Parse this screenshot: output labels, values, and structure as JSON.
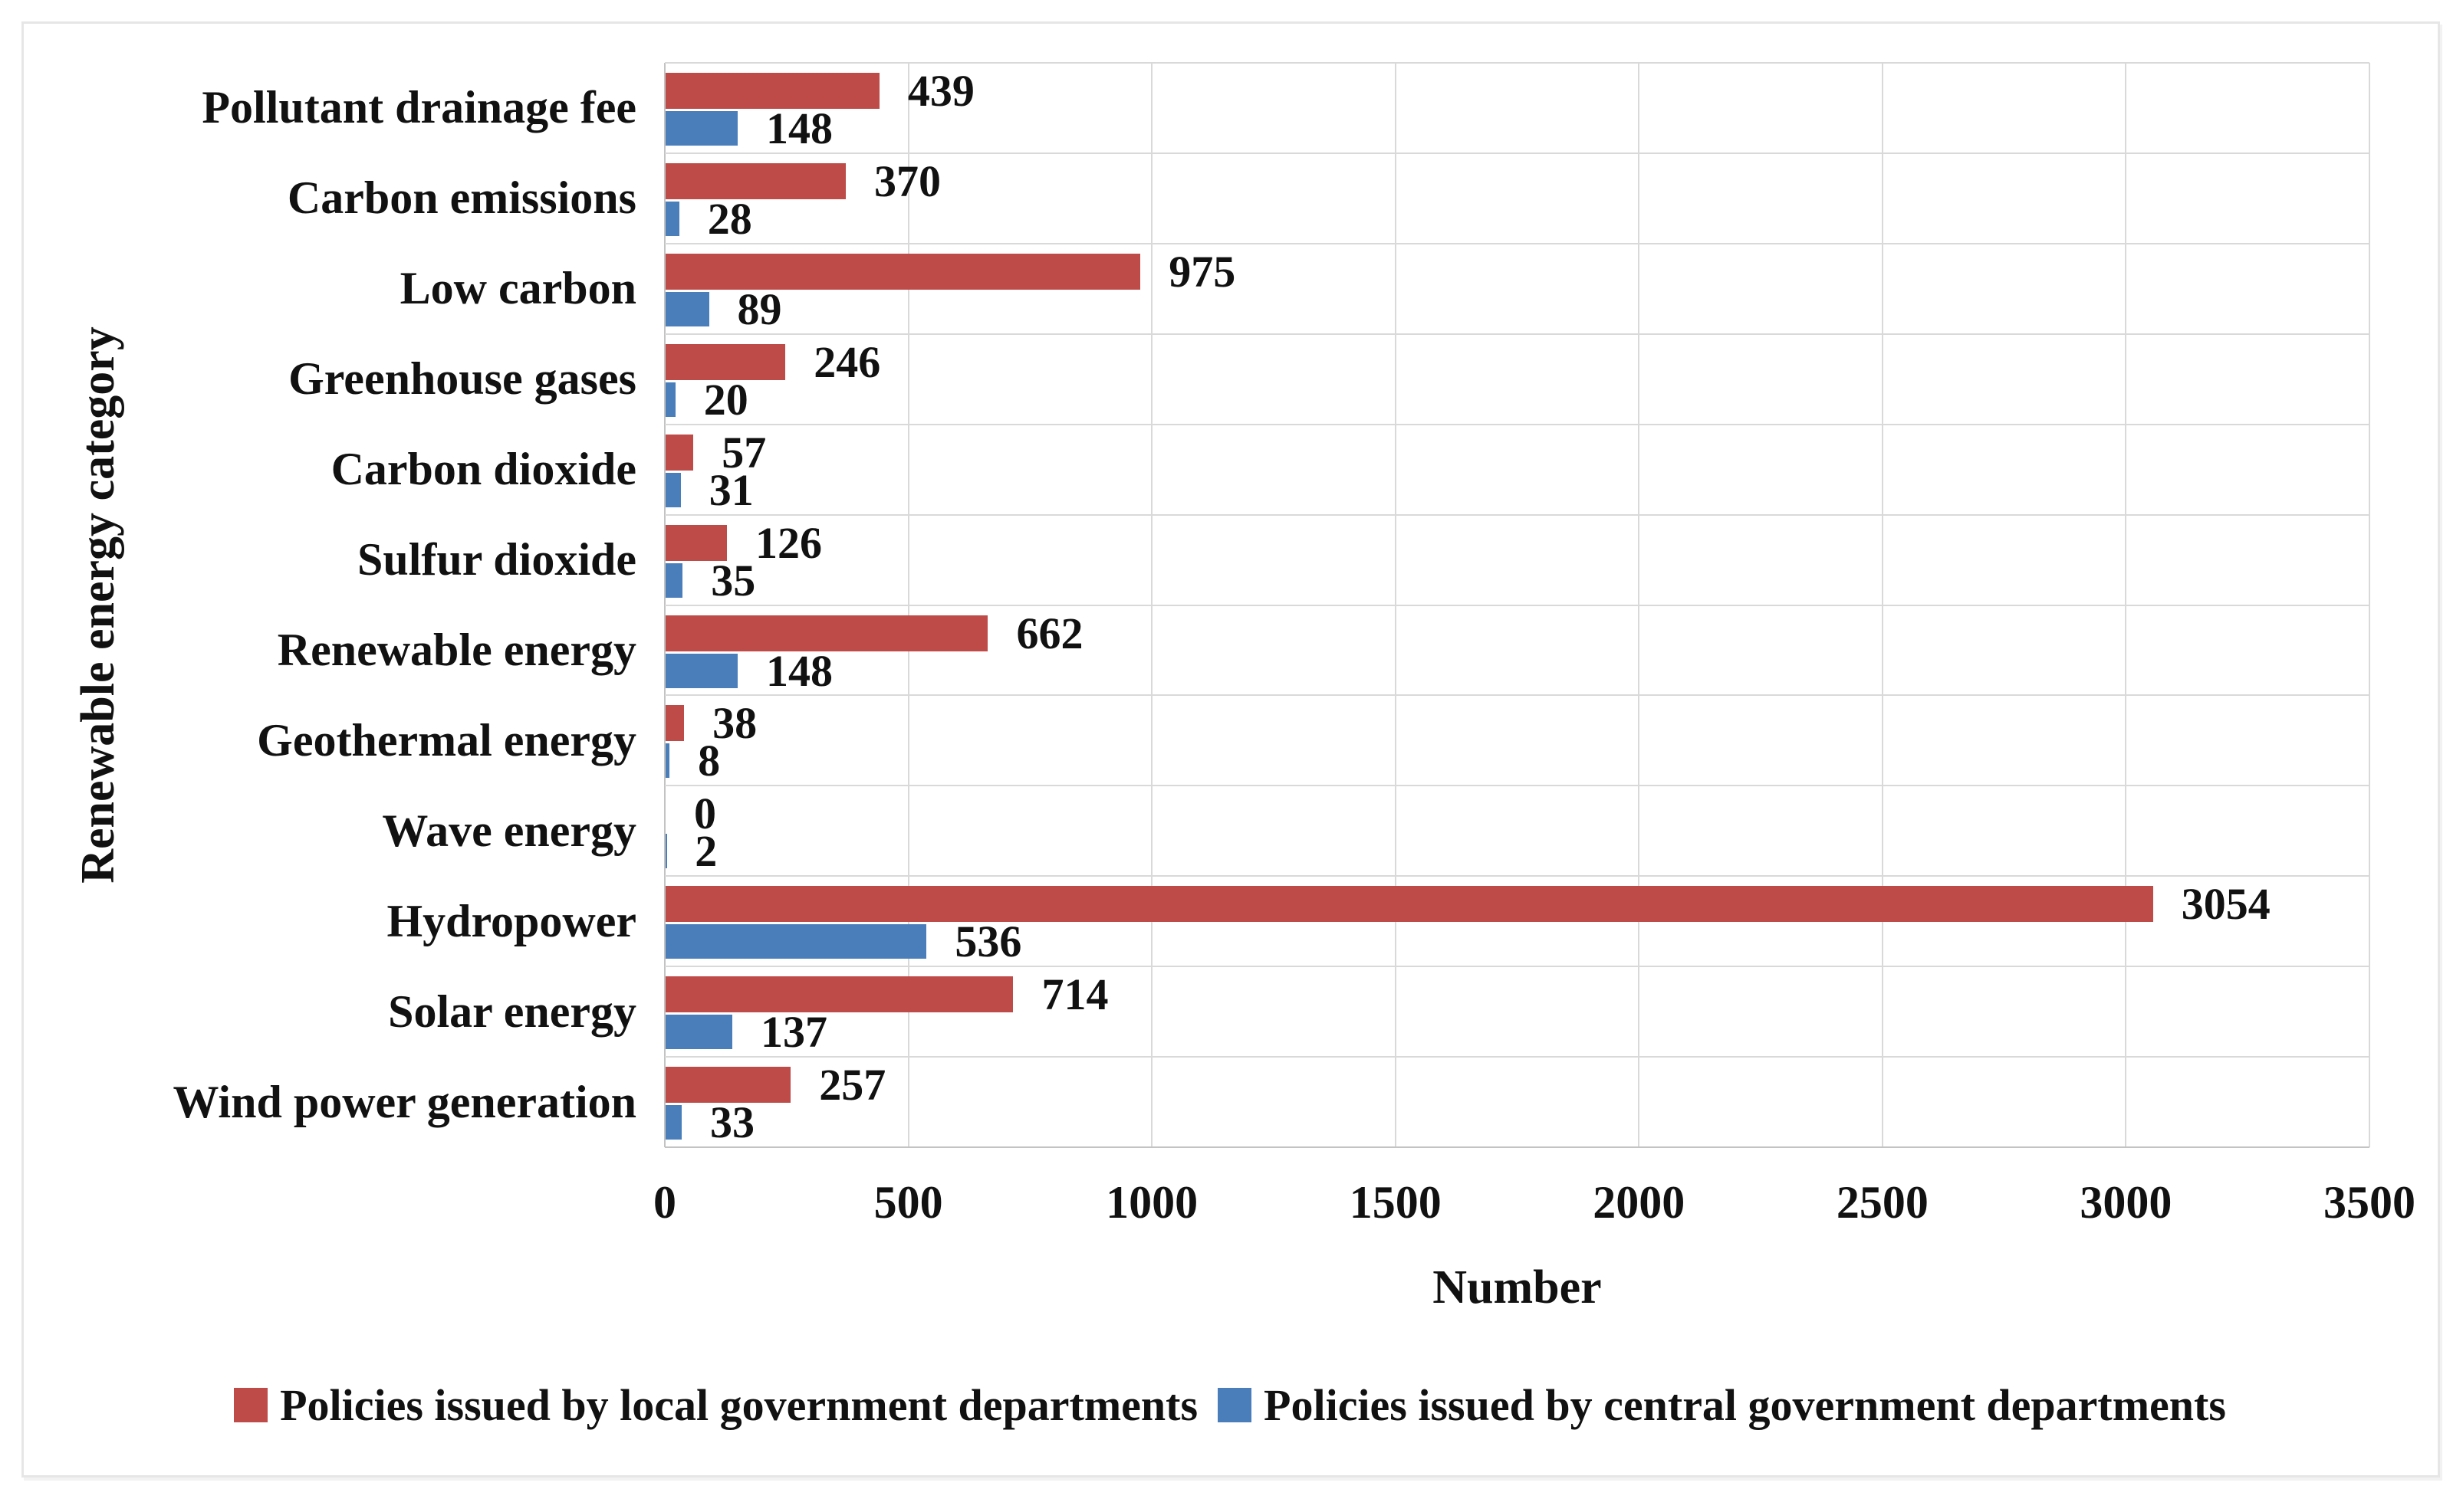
{
  "chart_data": {
    "type": "bar",
    "orientation": "horizontal",
    "xlabel": "Number",
    "ylabel": "Renewable energy category",
    "xlim": [
      0,
      3500
    ],
    "xtick_labels": [
      "0",
      "500",
      "1000",
      "1500",
      "2000",
      "2500",
      "3000",
      "3500"
    ],
    "grid": true,
    "legend_position": "bottom",
    "categories": [
      "Pollutant drainage fee",
      "Carbon emissions",
      "Low carbon",
      "Greenhouse gases",
      "Carbon dioxide",
      "Sulfur dioxide",
      "Renewable energy",
      "Geothermal energy",
      "Wave energy",
      "Hydropower",
      "Solar energy",
      "Wind power generation"
    ],
    "series": [
      {
        "name": "Policies issued by local government departments",
        "color": "#be4b48",
        "values": [
          439,
          370,
          975,
          246,
          57,
          126,
          662,
          38,
          0,
          3054,
          714,
          257
        ]
      },
      {
        "name": "Policies issued by central government departments",
        "color": "#4a7ebb",
        "values": [
          148,
          28,
          89,
          20,
          31,
          35,
          148,
          8,
          2,
          536,
          137,
          33
        ]
      }
    ]
  },
  "colors": {
    "gridline": "#d9d9d9",
    "axis_line": "#c3c3c3",
    "text": "#111111",
    "background": "#ffffff",
    "figure_border": "#e6e6e6"
  }
}
